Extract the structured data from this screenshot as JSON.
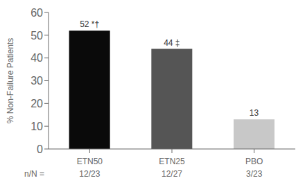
{
  "chart_data": {
    "type": "bar",
    "categories": [
      "ETN50",
      "ETN25",
      "PBO"
    ],
    "values": [
      52,
      44,
      13
    ],
    "value_labels": [
      "52 *†",
      "44 ‡",
      "13"
    ],
    "data_labels": true,
    "colors": [
      "#0a0a0a",
      "#555555",
      "#c8c8c8"
    ],
    "ylabel": "% Non-Failure Patients",
    "ylim": [
      0,
      60
    ],
    "yticks": [
      0,
      10,
      20,
      30,
      40,
      50,
      60
    ],
    "grid": false,
    "annotations": [
      {
        "text": "n/N ="
      },
      {
        "text": "12/23",
        "x": "ETN50"
      },
      {
        "text": "12/27",
        "x": "ETN25"
      },
      {
        "text": "3/23",
        "x": "PBO"
      }
    ]
  }
}
